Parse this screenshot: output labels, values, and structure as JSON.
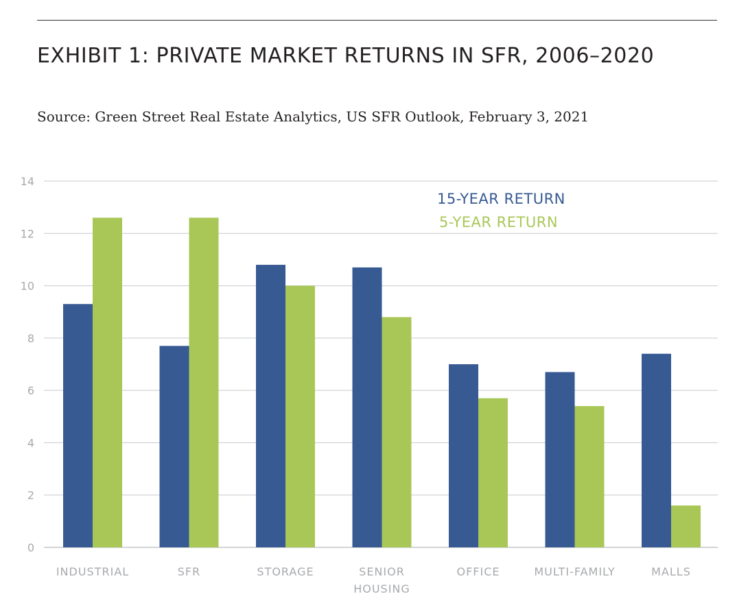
{
  "header": {
    "title": "EXHIBIT 1: PRIVATE MARKET RETURNS IN SFR, 2006–2020",
    "subtitle": "Source: Green Street Real Estate Analytics, US SFR Outlook, February 3, 2021"
  },
  "chart_data": {
    "type": "bar",
    "categories": [
      "INDUSTRIAL",
      "SFR",
      "STORAGE",
      "SENIOR HOUSING",
      "OFFICE",
      "MULTI-FAMILY",
      "MALLS"
    ],
    "series": [
      {
        "name": "15-YEAR RETURN",
        "color": "#375a93",
        "values": [
          9.3,
          7.7,
          10.8,
          10.7,
          7.0,
          6.7,
          7.4
        ]
      },
      {
        "name": "5-YEAR RETURN",
        "color": "#a8c757",
        "values": [
          12.6,
          12.6,
          10.0,
          8.8,
          5.7,
          5.4,
          1.6
        ]
      }
    ],
    "yticks": [
      0,
      2,
      4,
      6,
      8,
      10,
      12,
      14
    ],
    "ylim": [
      0,
      14
    ],
    "grid": true,
    "legend": "top-right"
  }
}
